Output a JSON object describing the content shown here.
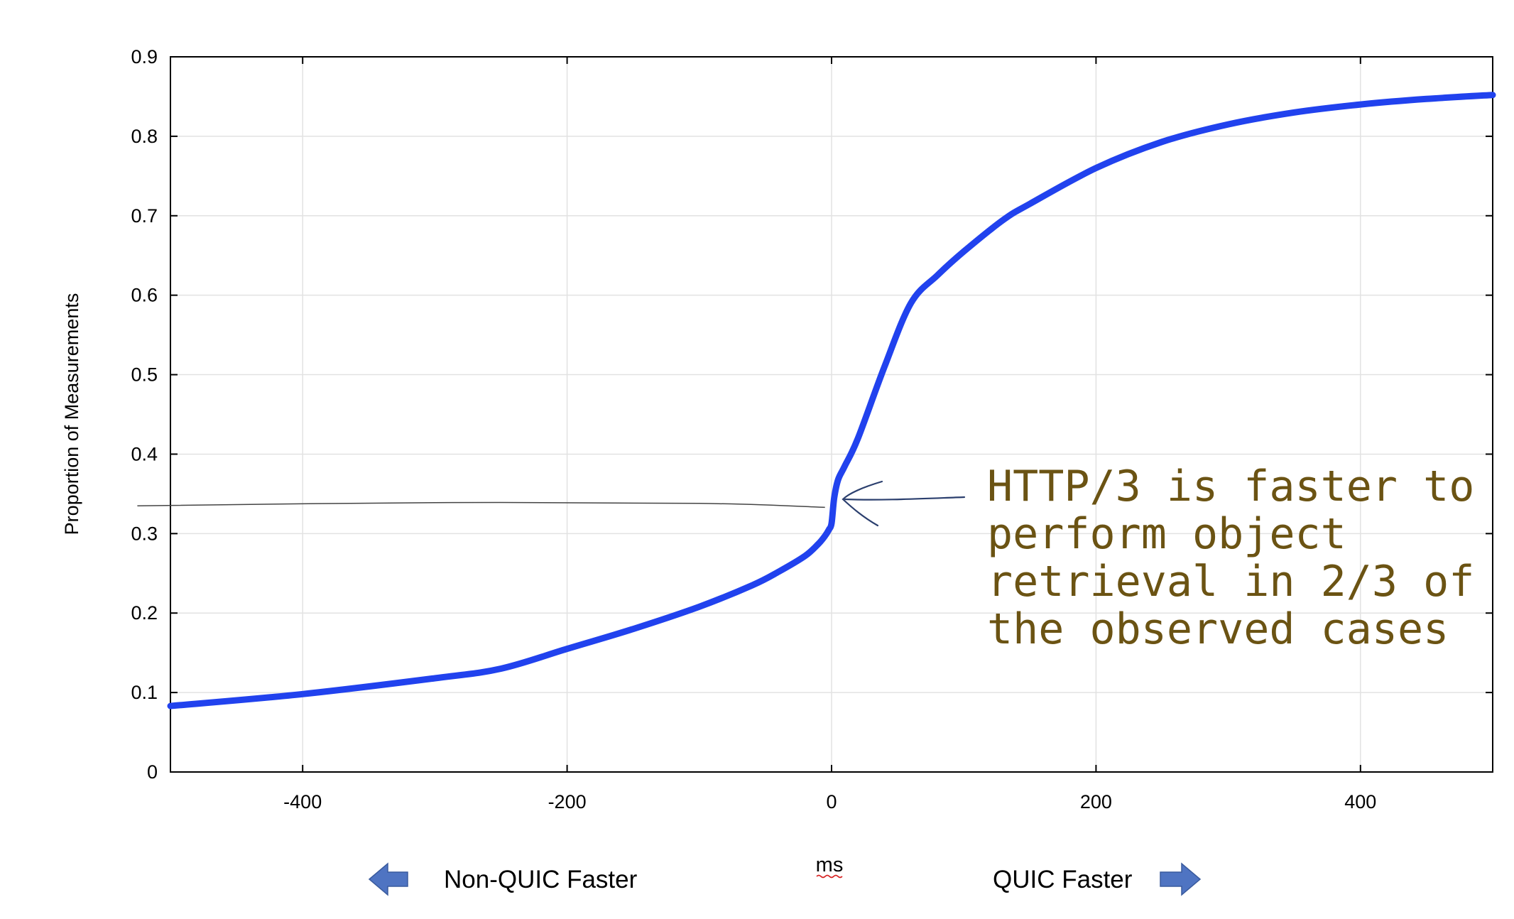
{
  "chart_data": {
    "type": "line",
    "title": "",
    "ylabel": "Proportion of Measurements",
    "xlabel": "ms",
    "xlim": [
      -500,
      500
    ],
    "ylim": [
      0,
      0.9
    ],
    "x_ticks": [
      -400,
      -200,
      0,
      200,
      400
    ],
    "x_tick_labels": [
      "-400",
      "-200",
      "0",
      "200",
      "400"
    ],
    "y_ticks": [
      0,
      0.1,
      0.2,
      0.3,
      0.4,
      0.5,
      0.6,
      0.7,
      0.8,
      0.9
    ],
    "y_tick_labels": [
      "0",
      "0.1",
      "0.2",
      "0.3",
      "0.4",
      "0.5",
      "0.6",
      "0.7",
      "0.8",
      "0.9"
    ],
    "grid": true,
    "series": [
      {
        "color": "#2142ee",
        "x": [
          -500,
          -400,
          -300,
          -250,
          -200,
          -150,
          -100,
          -60,
          -40,
          -20,
          -10,
          -5,
          -2,
          0,
          2,
          5,
          10,
          20,
          40,
          60,
          80,
          100,
          130,
          150,
          200,
          250,
          300,
          350,
          400,
          450,
          500
        ],
        "y": [
          0.083,
          0.098,
          0.118,
          0.13,
          0.155,
          0.18,
          0.208,
          0.235,
          0.252,
          0.272,
          0.287,
          0.297,
          0.305,
          0.313,
          0.345,
          0.368,
          0.385,
          0.42,
          0.51,
          0.59,
          0.625,
          0.655,
          0.695,
          0.715,
          0.76,
          0.793,
          0.815,
          0.83,
          0.84,
          0.847,
          0.852
        ]
      }
    ],
    "reference_line": {
      "x": [
        -525,
        -300,
        -100,
        -5
      ],
      "y": [
        0.335,
        0.339,
        0.338,
        0.333
      ],
      "color": "#444444"
    }
  },
  "annotation": {
    "lines": [
      "HTTP/3 is faster to",
      "perform object",
      "retrieval in 2/3 of",
      "the observed cases"
    ],
    "color": "#6b5313",
    "arrow_color": "#2b3f6e"
  },
  "legend": {
    "left_label": "Non-QUIC Faster",
    "right_label": "QUIC Faster",
    "arrow_color": "#4f74c2"
  }
}
